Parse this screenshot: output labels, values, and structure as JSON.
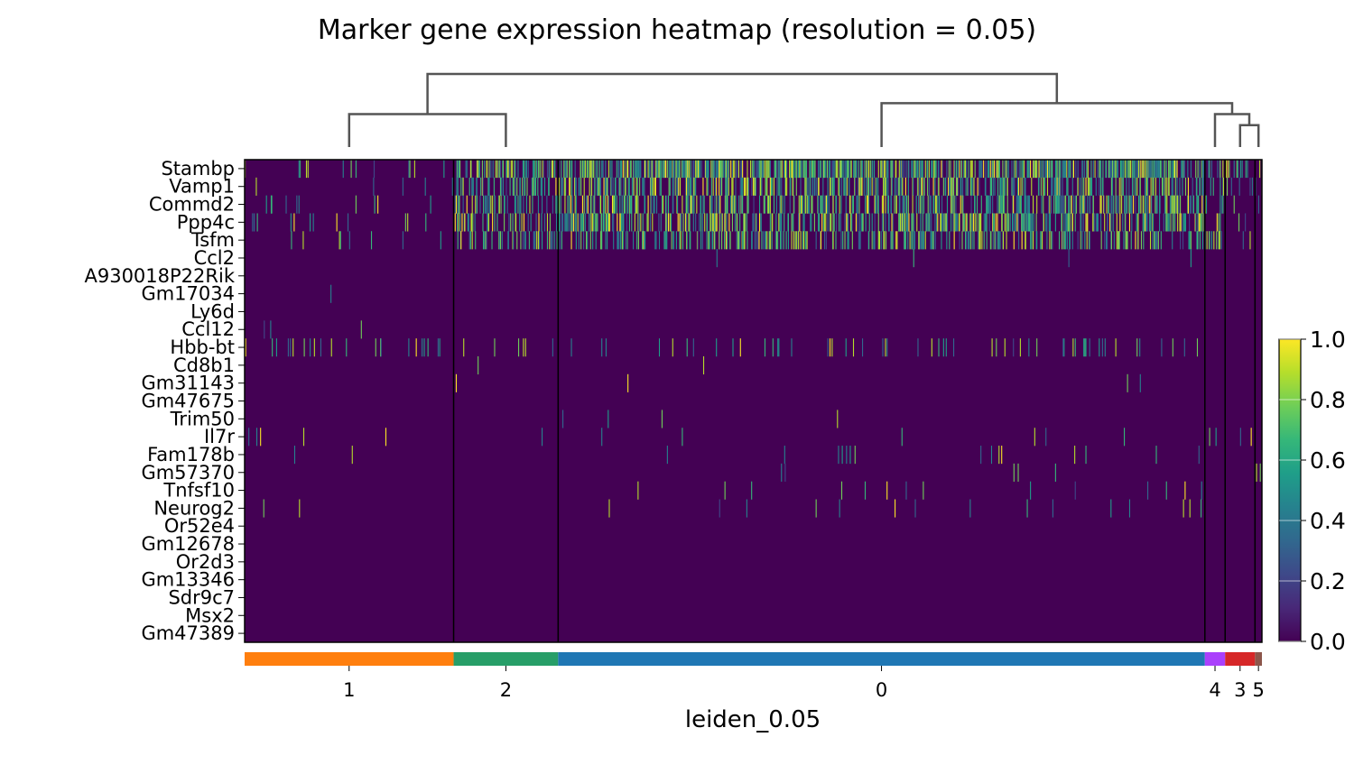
{
  "chart_data": {
    "type": "heatmap",
    "title": "Marker gene expression heatmap (resolution = 0.05)",
    "xlabel": "leiden_0.05",
    "ylabel": "",
    "genes": [
      "Stambp",
      "Vamp1",
      "Commd2",
      "Ppp4c",
      "Tsfm",
      "Ccl2",
      "A930018P22Rik",
      "Gm17034",
      "Ly6d",
      "Ccl12",
      "Hbb-bt",
      "Cd8b1",
      "Gm31143",
      "Gm47675",
      "Trim50",
      "Il7r",
      "Fam178b",
      "Gm57370",
      "Tnfsf10",
      "Neurog2",
      "Or52e4",
      "Gm12678",
      "Or2d3",
      "Gm13346",
      "Sdr9c7",
      "Msx2",
      "Gm47389"
    ],
    "clusters": [
      {
        "label": "1",
        "cells": 392,
        "color": "#ff7f0e"
      },
      {
        "label": "2",
        "cells": 196,
        "color": "#279e68"
      },
      {
        "label": "0",
        "cells": 1213,
        "color": "#1f77b4"
      },
      {
        "label": "4",
        "cells": 38,
        "color": "#aa40fc"
      },
      {
        "label": "3",
        "cells": 56,
        "color": "#d62728"
      },
      {
        "label": "5",
        "cells": 13,
        "color": "#8c564b"
      }
    ],
    "cluster_density": {
      "1": [
        0.03,
        0.01,
        0.02,
        0.02,
        0.02,
        0,
        0,
        0.004,
        0,
        0.004,
        0.04,
        0,
        0,
        0,
        0,
        0.01,
        0.004,
        0,
        0,
        0.004,
        0,
        0,
        0,
        0,
        0,
        0,
        0
      ],
      "2": [
        0.35,
        0.3,
        0.25,
        0.25,
        0.2,
        0,
        0,
        0,
        0,
        0,
        0.05,
        0.004,
        0.01,
        0,
        0,
        0.004,
        0,
        0,
        0,
        0,
        0,
        0,
        0,
        0,
        0,
        0,
        0
      ],
      "0": [
        0.45,
        0.3,
        0.3,
        0.3,
        0.25,
        0.002,
        0,
        0,
        0,
        0,
        0.04,
        0.002,
        0.005,
        0,
        0.002,
        0.008,
        0.012,
        0.008,
        0.01,
        0.01,
        0,
        0,
        0,
        0,
        0,
        0,
        0
      ],
      "4": [
        0.15,
        0.1,
        0.08,
        0.08,
        0.15,
        0,
        0,
        0,
        0,
        0,
        0,
        0,
        0,
        0,
        0,
        0.05,
        0,
        0,
        0,
        0,
        0,
        0,
        0,
        0,
        0,
        0,
        0
      ],
      "3": [
        0.2,
        0.1,
        0.1,
        0.08,
        0.04,
        0,
        0,
        0,
        0,
        0,
        0.02,
        0,
        0,
        0,
        0,
        0.02,
        0,
        0,
        0,
        0,
        0,
        0,
        0,
        0,
        0,
        0,
        0
      ],
      "5": [
        0.1,
        0.1,
        0.05,
        0,
        0,
        0,
        0,
        0,
        0,
        0,
        0,
        0,
        0,
        0,
        0,
        0,
        0,
        0.1,
        0,
        0,
        0,
        0,
        0,
        0,
        0,
        0,
        0
      ]
    },
    "dendrogram": {
      "order": [
        "1",
        "2",
        "0",
        "4",
        "3",
        "5"
      ],
      "merges": [
        {
          "left": "3",
          "right": "5",
          "height": 0.3
        },
        {
          "left": "4",
          "right": "3+5",
          "height": 0.45
        },
        {
          "left": "1",
          "right": "2",
          "height": 0.45
        },
        {
          "left": "0",
          "right": "4+3+5",
          "height": 0.6
        },
        {
          "left": "1+2",
          "right": "0+4+3+5",
          "height": 1.0
        }
      ]
    },
    "colorbar": {
      "colormap": "viridis",
      "range": [
        0,
        1
      ],
      "ticks": [
        "0.0",
        "0.2",
        "0.4",
        "0.6",
        "0.8",
        "1.0"
      ]
    }
  }
}
